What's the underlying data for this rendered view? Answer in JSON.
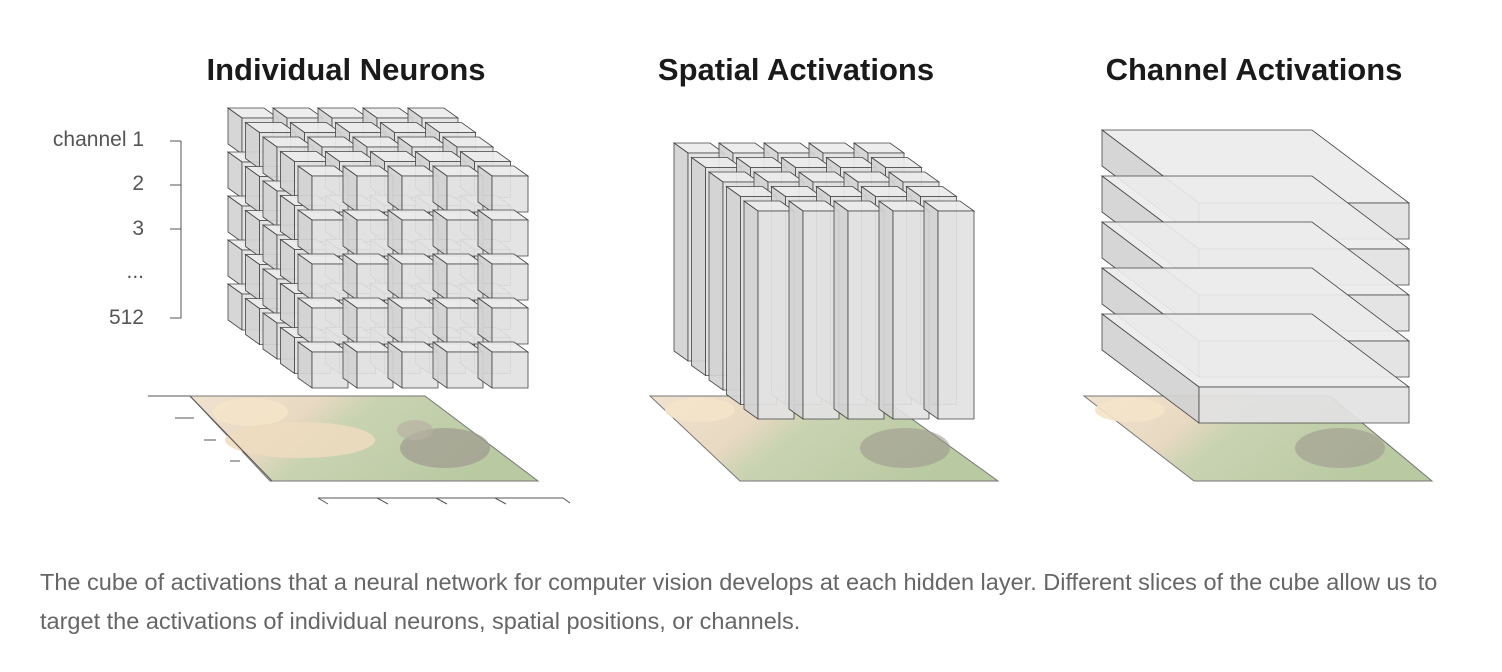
{
  "panels": [
    {
      "title": "Individual Neurons"
    },
    {
      "title": "Spatial Activations"
    },
    {
      "title": "Channel Activations"
    }
  ],
  "channel_axis": {
    "labels": [
      "channel 1",
      "2",
      "3",
      "...",
      "512"
    ]
  },
  "caption": "The cube of activations that a neural network for computer vision develops at each hidden layer. Different slices of the cube allow us to target the activations of individual neurons, spatial positions, or channels.",
  "colors": {
    "cube_front": "#e2e2e2",
    "cube_top": "#ececec",
    "cube_side": "#d2d2d2",
    "edge": "#444444"
  }
}
